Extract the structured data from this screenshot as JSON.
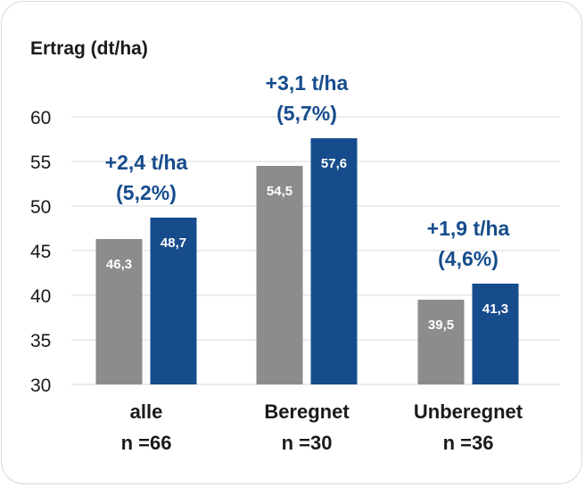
{
  "chart_data": {
    "type": "bar",
    "ylabel": "Ertrag (dt/ha)",
    "ylim": [
      30,
      60
    ],
    "yticks": [
      30,
      35,
      40,
      45,
      50,
      55,
      60
    ],
    "grid": true,
    "categories": [
      {
        "name": "alle",
        "n": "n =66"
      },
      {
        "name": "Beregnet",
        "n": "n =30"
      },
      {
        "name": "Unberegnet",
        "n": "n =36"
      }
    ],
    "series": [
      {
        "values": [
          46.3,
          54.5,
          39.5
        ],
        "labels": [
          "46,3",
          "54,5",
          "39,5"
        ],
        "color": "#8c8c8c"
      },
      {
        "values": [
          48.7,
          57.6,
          41.3
        ],
        "labels": [
          "48,7",
          "57,6",
          "41,3"
        ],
        "color": "#164c8c"
      }
    ],
    "annotations": [
      {
        "line1": "+2,4 t/ha",
        "line2": "(5,2%)"
      },
      {
        "line1": "+3,1 t/ha",
        "line2": "(5,7%)"
      },
      {
        "line1": "+1,9 t/ha",
        "line2": "(4,6%)"
      }
    ],
    "annotation_color": "#164c8c"
  }
}
